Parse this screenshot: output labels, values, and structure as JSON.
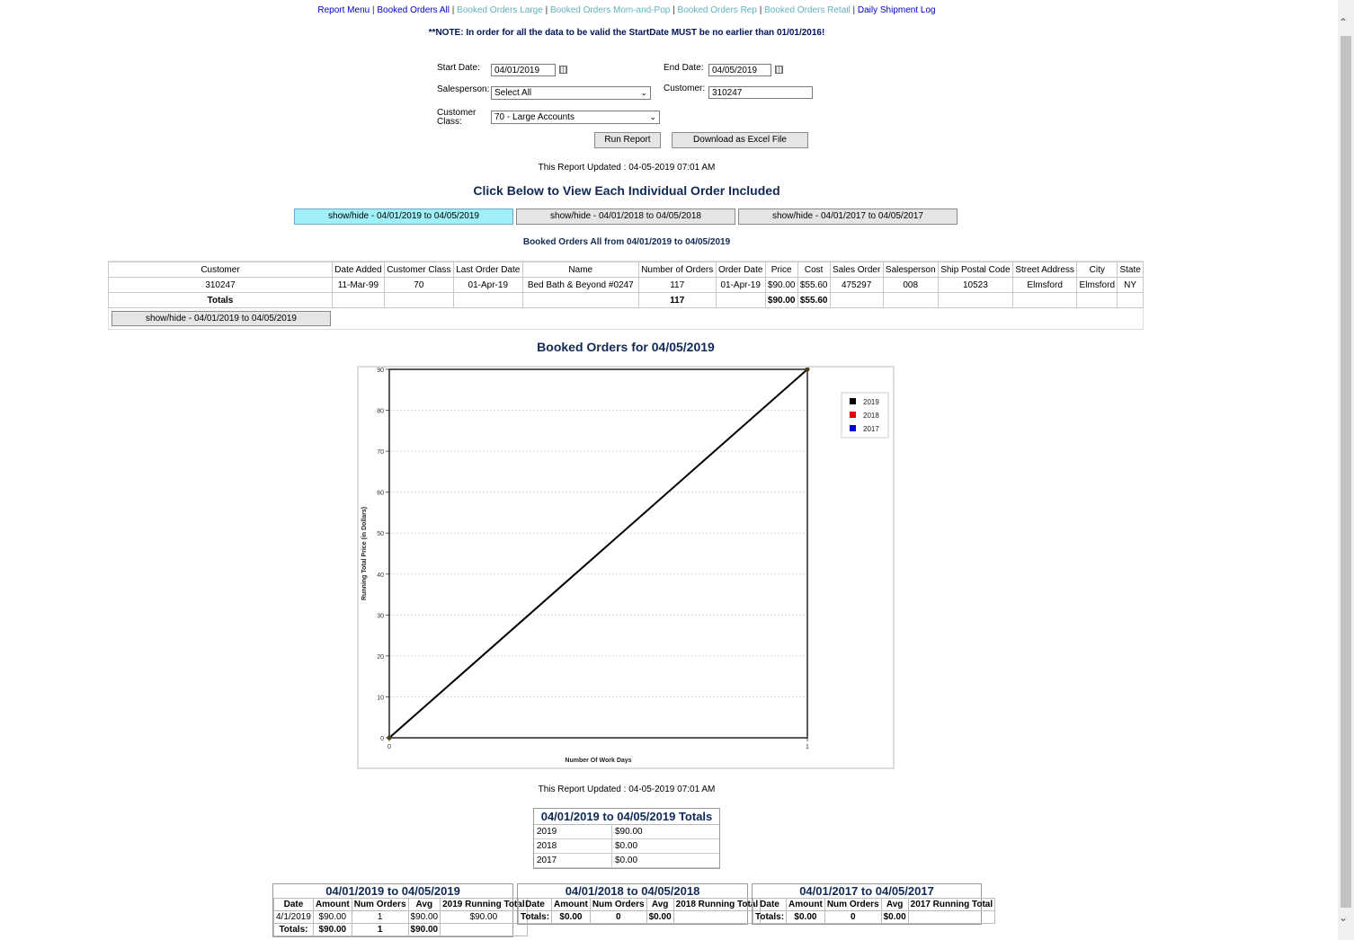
{
  "nav": {
    "report_menu": "Report Menu",
    "booked_all": "Booked Orders All",
    "booked_large": "Booked Orders Large",
    "booked_mom": "Booked Orders Mom-and-Pop",
    "booked_rep": "Booked Orders Rep",
    "booked_retail": "Booked Orders Retail",
    "daily_log": "Daily Shipment Log",
    "sep": "|"
  },
  "note": "**NOTE: In order for all the data to be valid the StartDate MUST be no earlier than 01/01/2016!",
  "form": {
    "start_label": "Start Date:",
    "start_value": "04/01/2019",
    "end_label": "End Date:",
    "end_value": "04/05/2019",
    "salesperson_label": "Salesperson:",
    "salesperson_value": "Select All",
    "customer_label": "Customer:",
    "customer_value": "310247",
    "class_label_1": "Customer",
    "class_label_2": "Class:",
    "class_value": "70 - Large Accounts",
    "run_btn": "Run Report",
    "excel_btn": "Download as Excel File"
  },
  "updated_text": "This Report Updated : 04-05-2019 07:01 AM",
  "click_heading": "Click Below to View Each Individual Order Included",
  "tabs": [
    "show/hide - 04/01/2019 to 04/05/2019",
    "show/hide - 04/01/2018 to 04/05/2018",
    "show/hide - 04/01/2017 to 04/05/2017"
  ],
  "orders_heading": "Booked Orders All from 04/01/2019 to 04/05/2019",
  "orders_table": {
    "headers": [
      "Customer",
      "Date Added",
      "Customer Class",
      "Last Order Date",
      "Name",
      "Number of Orders",
      "Order Date",
      "Price",
      "Cost",
      "Sales Order",
      "Salesperson",
      "Ship Postal Code",
      "Street Address",
      "City",
      "State"
    ],
    "row": [
      "310247",
      "11-Mar-99",
      "70",
      "01-Apr-19",
      "Bed Bath & Beyond #0247",
      "117",
      "01-Apr-19",
      "$90.00",
      "$55.60",
      "475297",
      "008",
      "10523",
      "Elmsford",
      "Elmsford",
      "NY"
    ],
    "totals_label": "Totals",
    "totals_orders": "117",
    "totals_price": "$90.00",
    "totals_cost": "$55.60",
    "inner_btn": "show/hide - 04/01/2019 to 04/05/2019"
  },
  "chart_data": {
    "type": "line",
    "title": "Booked Orders for 04/05/2019",
    "xlabel": "Number Of Work Days",
    "ylabel": "Running Total Price (in Dollars)",
    "xlim": [
      0,
      1
    ],
    "ylim": [
      0,
      90
    ],
    "xticks": [
      "0",
      "1"
    ],
    "yticks": [
      "0",
      "10",
      "20",
      "30",
      "40",
      "50",
      "60",
      "70",
      "80",
      "90"
    ],
    "grid": true,
    "legend_position": "top-right",
    "series": [
      {
        "name": "2019",
        "color": "#000000",
        "x": [
          0,
          1
        ],
        "y": [
          0,
          90
        ]
      },
      {
        "name": "2018",
        "color": "#e00000",
        "x": [],
        "y": []
      },
      {
        "name": "2017",
        "color": "#0000cc",
        "x": [],
        "y": []
      }
    ]
  },
  "totals_summary": {
    "title": "04/01/2019 to 04/05/2019 Totals",
    "rows": [
      [
        "2019",
        "$90.00"
      ],
      [
        "2018",
        "$0.00"
      ],
      [
        "2017",
        "$0.00"
      ]
    ]
  },
  "year_tables": [
    {
      "title": "04/01/2019 to 04/05/2019",
      "headers": [
        "Date",
        "Amount",
        "Num Orders",
        "Avg",
        "2019 Running Total"
      ],
      "rows": [
        [
          "4/1/2019",
          "$90.00",
          "1",
          "$90.00",
          "$90.00"
        ]
      ],
      "totals": [
        "Totals:",
        "$90.00",
        "1",
        "$90.00",
        ""
      ]
    },
    {
      "title": "04/01/2018 to 04/05/2018",
      "headers": [
        "Date",
        "Amount",
        "Num Orders",
        "Avg",
        "2018 Running Total"
      ],
      "rows": [],
      "totals": [
        "Totals:",
        "$0.00",
        "0",
        "$0.00",
        ""
      ]
    },
    {
      "title": "04/01/2017 to 04/05/2017",
      "headers": [
        "Date",
        "Amount",
        "Num Orders",
        "Avg",
        "2017 Running Total"
      ],
      "rows": [],
      "totals": [
        "Totals:",
        "$0.00",
        "0",
        "$0.00",
        ""
      ]
    }
  ]
}
